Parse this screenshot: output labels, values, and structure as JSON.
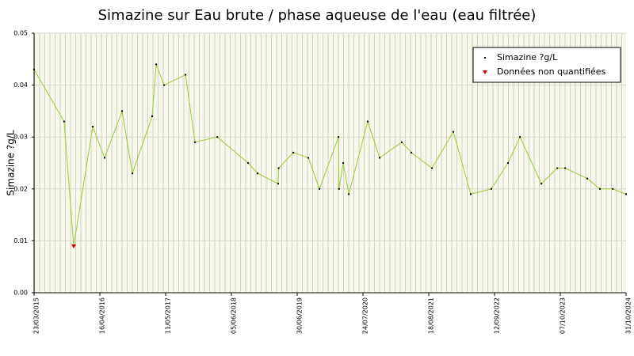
{
  "chart_data": {
    "type": "line",
    "title": "Simazine sur Eau brute / phase aqueuse de l'eau (eau filtrée)",
    "y_label": "Simazine ?g/L",
    "x": [
      "2015-03-23",
      "2015-09-17",
      "2015-11-13",
      "2016-03-05",
      "2016-05-14",
      "2016-08-26",
      "2016-10-26",
      "2017-02-20",
      "2017-03-16",
      "2017-05-02",
      "2017-09-06",
      "2017-11-01",
      "2018-03-13",
      "2018-09-12",
      "2018-11-07",
      "2019-03-09",
      "2019-03-12",
      "2019-06-07",
      "2019-09-04",
      "2019-11-09",
      "2020-03-01",
      "2020-03-04",
      "2020-03-29",
      "2020-05-01",
      "2020-08-21",
      "2020-10-31",
      "2021-03-11",
      "2021-05-07",
      "2021-09-06",
      "2022-01-11",
      "2022-04-24",
      "2022-08-24",
      "2022-12-01",
      "2023-02-10",
      "2023-06-17",
      "2023-09-19",
      "2023-11-05",
      "2024-03-15",
      "2024-05-29",
      "2024-08-13",
      "2024-10-31"
    ],
    "series": [
      {
        "name": "Simazine ?g/L",
        "color": "#99cc33",
        "values": [
          0.043,
          0.033,
          0.009,
          0.032,
          0.026,
          0.035,
          0.023,
          0.034,
          0.044,
          0.04,
          0.042,
          0.029,
          0.03,
          0.025,
          0.023,
          0.021,
          0.024,
          0.027,
          0.026,
          0.02,
          0.03,
          0.02,
          0.025,
          0.019,
          0.033,
          0.026,
          0.029,
          0.027,
          0.024,
          0.031,
          0.019,
          0.02,
          0.025,
          0.03,
          0.021,
          0.024,
          0.024,
          0.022,
          0.02,
          0.02,
          0.019
        ]
      },
      {
        "name": "Données non quantifiées",
        "color": "#dd0000",
        "values": [
          null,
          null,
          0.009,
          null,
          null,
          null,
          null,
          null,
          null,
          null,
          null,
          null,
          null,
          null,
          null,
          null,
          null,
          null,
          null,
          null,
          null,
          null,
          null,
          null,
          null,
          null,
          null,
          null,
          null,
          null,
          null,
          null,
          null,
          null,
          null,
          null,
          null,
          null,
          null,
          null,
          null
        ]
      }
    ],
    "xlim": [
      "2015-03-23",
      "2024-10-31"
    ],
    "xticks": [
      {
        "value": "2015-03-23",
        "label": "23/03/2015"
      },
      {
        "value": "2016-04-16",
        "label": "16/04/2016"
      },
      {
        "value": "2017-05-11",
        "label": "11/05/2017"
      },
      {
        "value": "2018-06-05",
        "label": "05/06/2018"
      },
      {
        "value": "2019-06-30",
        "label": "30/06/2019"
      },
      {
        "value": "2020-07-24",
        "label": "24/07/2020"
      },
      {
        "value": "2021-08-18",
        "label": "18/08/2021"
      },
      {
        "value": "2022-09-12",
        "label": "12/09/2022"
      },
      {
        "value": "2023-10-07",
        "label": "07/10/2023"
      },
      {
        "value": "2024-10-31",
        "label": "31/10/2024"
      }
    ],
    "ylim": [
      0,
      0.05
    ],
    "yticks": [
      {
        "value": 0,
        "label": "0.00"
      },
      0.01,
      0.02,
      0.03,
      0.04,
      0.05
    ],
    "grid": true,
    "legend": "top-right"
  }
}
